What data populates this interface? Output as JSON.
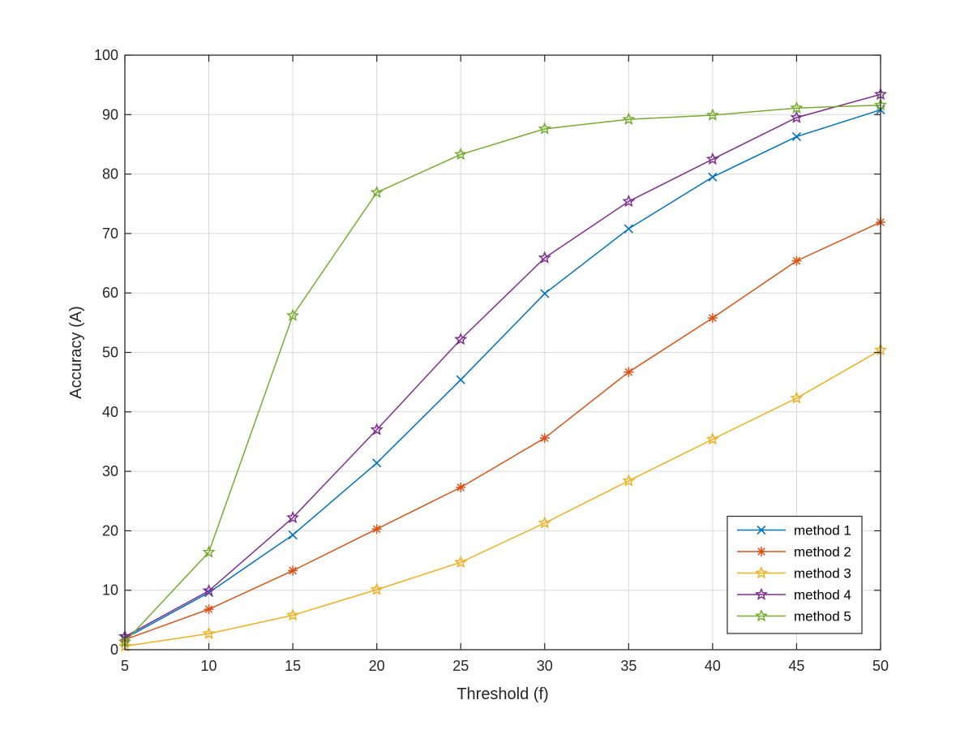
{
  "chart_data": {
    "type": "line",
    "xlabel": "Threshold (f)",
    "ylabel": "Accuracy (A)",
    "xlim": [
      5,
      50
    ],
    "ylim": [
      0,
      100
    ],
    "x_ticks": [
      5,
      10,
      15,
      20,
      25,
      30,
      35,
      40,
      45,
      50
    ],
    "y_ticks": [
      0,
      10,
      20,
      30,
      40,
      50,
      60,
      70,
      80,
      90,
      100
    ],
    "grid": true,
    "legend_position": "bottom-right",
    "x": [
      5,
      10,
      15,
      20,
      25,
      30,
      35,
      40,
      45,
      50
    ],
    "series": [
      {
        "name": "method 1",
        "marker": "x",
        "color": "#0072BD",
        "values": [
          1.9,
          9.6,
          19.3,
          31.4,
          45.4,
          59.9,
          70.8,
          79.5,
          86.3,
          90.8
        ]
      },
      {
        "name": "method 2",
        "marker": "asterisk",
        "color": "#D95319",
        "values": [
          1.7,
          6.8,
          13.3,
          20.3,
          27.3,
          35.6,
          46.7,
          55.8,
          65.4,
          71.9
        ]
      },
      {
        "name": "method 3",
        "marker": "pentagram",
        "color": "#EDB120",
        "values": [
          0.6,
          2.7,
          5.8,
          10.1,
          14.7,
          21.3,
          28.4,
          35.4,
          42.3,
          50.4
        ]
      },
      {
        "name": "method 4",
        "marker": "pentagram",
        "color": "#7E2F8E",
        "values": [
          2.2,
          9.9,
          22.2,
          37.0,
          52.2,
          65.9,
          75.4,
          82.5,
          89.5,
          93.4
        ]
      },
      {
        "name": "method 5",
        "marker": "pentagram",
        "color": "#77AC30",
        "values": [
          1.3,
          16.4,
          56.2,
          76.9,
          83.3,
          87.6,
          89.2,
          89.9,
          91.1,
          91.6
        ]
      }
    ]
  }
}
